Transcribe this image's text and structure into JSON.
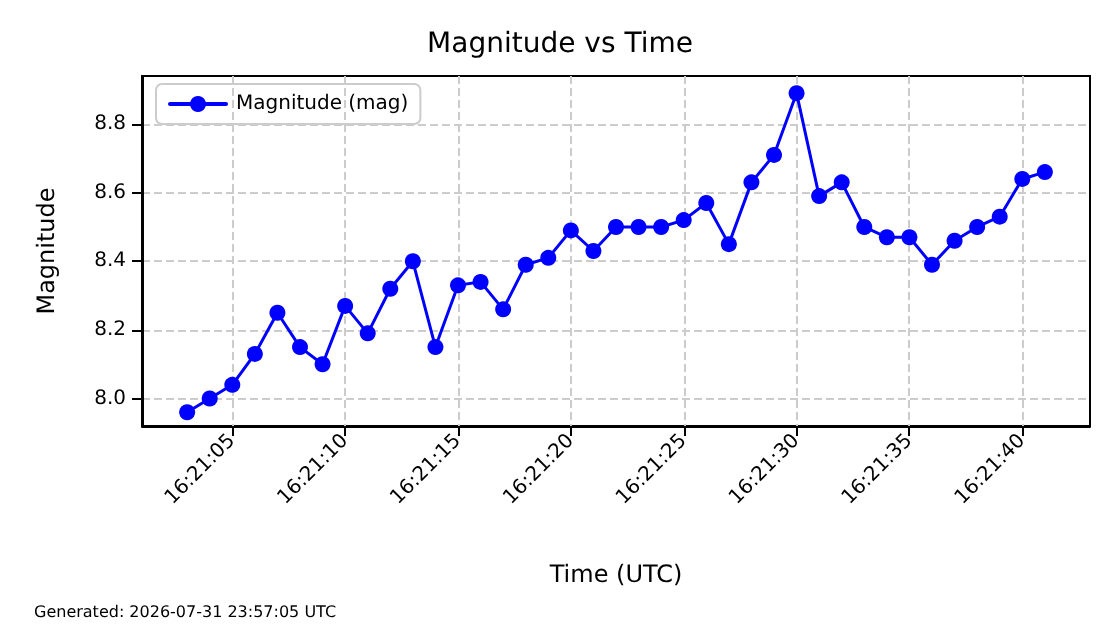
{
  "chart_data": {
    "type": "line",
    "title": "Magnitude vs Time",
    "xlabel": "Time (UTC)",
    "ylabel": "Magnitude",
    "x": [
      "2026-07-31T16:21:03",
      "2026-07-31T16:21:04",
      "2026-07-31T16:21:05",
      "2026-07-31T16:21:06",
      "2026-07-31T16:21:07",
      "2026-07-31T16:21:08",
      "2026-07-31T16:21:09",
      "2026-07-31T16:21:10",
      "2026-07-31T16:21:11",
      "2026-07-31T16:21:12",
      "2026-07-31T16:21:13",
      "2026-07-31T16:21:14",
      "2026-07-31T16:21:15",
      "2026-07-31T16:21:16",
      "2026-07-31T16:21:17",
      "2026-07-31T16:21:18",
      "2026-07-31T16:21:19",
      "2026-07-31T16:21:20",
      "2026-07-31T16:21:21",
      "2026-07-31T16:21:22",
      "2026-07-31T16:21:23",
      "2026-07-31T16:21:24",
      "2026-07-31T16:21:25",
      "2026-07-31T16:21:26",
      "2026-07-31T16:21:27",
      "2026-07-31T16:21:28",
      "2026-07-31T16:21:29",
      "2026-07-31T16:21:30",
      "2026-07-31T16:21:31",
      "2026-07-31T16:21:32",
      "2026-07-31T16:21:33",
      "2026-07-31T16:21:34",
      "2026-07-31T16:21:35",
      "2026-07-31T16:21:36",
      "2026-07-31T16:21:37",
      "2026-07-31T16:21:38",
      "2026-07-31T16:21:39",
      "2026-07-31T16:21:40",
      "2026-07-31T16:21:41"
    ],
    "series": [
      {
        "name": "Magnitude (mag)",
        "color": "#0000ff",
        "values": [
          7.96,
          8.0,
          8.04,
          8.13,
          8.25,
          8.15,
          8.1,
          8.27,
          8.19,
          8.32,
          8.4,
          8.15,
          8.33,
          8.34,
          8.26,
          8.39,
          8.41,
          8.49,
          8.43,
          8.5,
          8.5,
          8.5,
          8.52,
          8.57,
          8.45,
          8.63,
          8.71,
          8.89,
          8.59,
          8.63,
          8.5,
          8.47,
          8.47,
          8.39,
          8.46,
          8.5,
          8.53,
          8.64,
          8.66
        ]
      }
    ],
    "xlim": [
      "2026-07-31T16:21:01",
      "2026-07-31T16:21:43"
    ],
    "xticks": [
      {
        "value": "2026-07-31T16:21:05",
        "label": "16:21:05"
      },
      {
        "value": "2026-07-31T16:21:10",
        "label": "16:21:10"
      },
      {
        "value": "2026-07-31T16:21:15",
        "label": "16:21:15"
      },
      {
        "value": "2026-07-31T16:21:20",
        "label": "16:21:20"
      },
      {
        "value": "2026-07-31T16:21:25",
        "label": "16:21:25"
      },
      {
        "value": "2026-07-31T16:21:30",
        "label": "16:21:30"
      },
      {
        "value": "2026-07-31T16:21:35",
        "label": "16:21:35"
      },
      {
        "value": "2026-07-31T16:21:40",
        "label": "16:21:40"
      }
    ],
    "ylim": [
      7.92,
      8.94
    ],
    "yticks": [
      {
        "value": 8.0,
        "label": "8.0"
      },
      {
        "value": 8.2,
        "label": "8.2"
      },
      {
        "value": 8.4,
        "label": "8.4"
      },
      {
        "value": 8.6,
        "label": "8.6"
      },
      {
        "value": 8.8,
        "label": "8.8"
      }
    ],
    "grid": true,
    "legend": "top left",
    "marker": "circle",
    "line_style": "solid",
    "annotations": [
      "Generated: 2026-07-31 23:57:05 UTC"
    ]
  }
}
